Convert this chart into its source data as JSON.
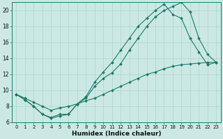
{
  "xlabel": "Humidex (Indice chaleur)",
  "background_color": "#cce8e4",
  "line_color": "#1a7a6a",
  "grid_color": "#aad4cc",
  "xlim": [
    -0.5,
    23.5
  ],
  "ylim": [
    6,
    21
  ],
  "yticks": [
    6,
    8,
    10,
    12,
    14,
    16,
    18,
    20
  ],
  "xticks": [
    0,
    1,
    2,
    3,
    4,
    5,
    6,
    7,
    8,
    9,
    10,
    11,
    12,
    13,
    14,
    15,
    16,
    17,
    18,
    19,
    20,
    21,
    22,
    23
  ],
  "line1_x": [
    0,
    1,
    2,
    3,
    4,
    5,
    6,
    7,
    8,
    9,
    10,
    11,
    12,
    13,
    14,
    15,
    16,
    17,
    18,
    19,
    20,
    21,
    22,
    23
  ],
  "line1_y": [
    9.5,
    8.8,
    8.0,
    7.0,
    6.6,
    7.0,
    7.0,
    8.3,
    9.0,
    10.5,
    11.5,
    12.2,
    13.3,
    15.0,
    16.5,
    18.0,
    19.2,
    20.0,
    20.5,
    21.0,
    19.8,
    16.5,
    14.5,
    13.5
  ],
  "line2_x": [
    0,
    1,
    2,
    3,
    4,
    5,
    6,
    7,
    8,
    9,
    10,
    11,
    12,
    13,
    14,
    15,
    16,
    17,
    18,
    19,
    20,
    21,
    22,
    23
  ],
  "line2_y": [
    9.5,
    8.8,
    8.0,
    7.0,
    6.5,
    6.8,
    7.0,
    8.3,
    9.2,
    11.0,
    12.3,
    13.5,
    15.0,
    16.5,
    18.0,
    19.0,
    20.0,
    20.8,
    19.5,
    19.0,
    16.5,
    14.8,
    13.2,
    13.5
  ],
  "line3_x": [
    0,
    1,
    2,
    3,
    4,
    5,
    6,
    7,
    8,
    9,
    10,
    11,
    12,
    13,
    14,
    15,
    16,
    17,
    18,
    19,
    20,
    21,
    22,
    23
  ],
  "line3_y": [
    9.5,
    9.0,
    8.5,
    8.0,
    7.5,
    7.8,
    8.0,
    8.3,
    8.7,
    9.0,
    9.5,
    10.0,
    10.5,
    11.0,
    11.5,
    12.0,
    12.3,
    12.7,
    13.0,
    13.2,
    13.3,
    13.4,
    13.5,
    13.5
  ]
}
